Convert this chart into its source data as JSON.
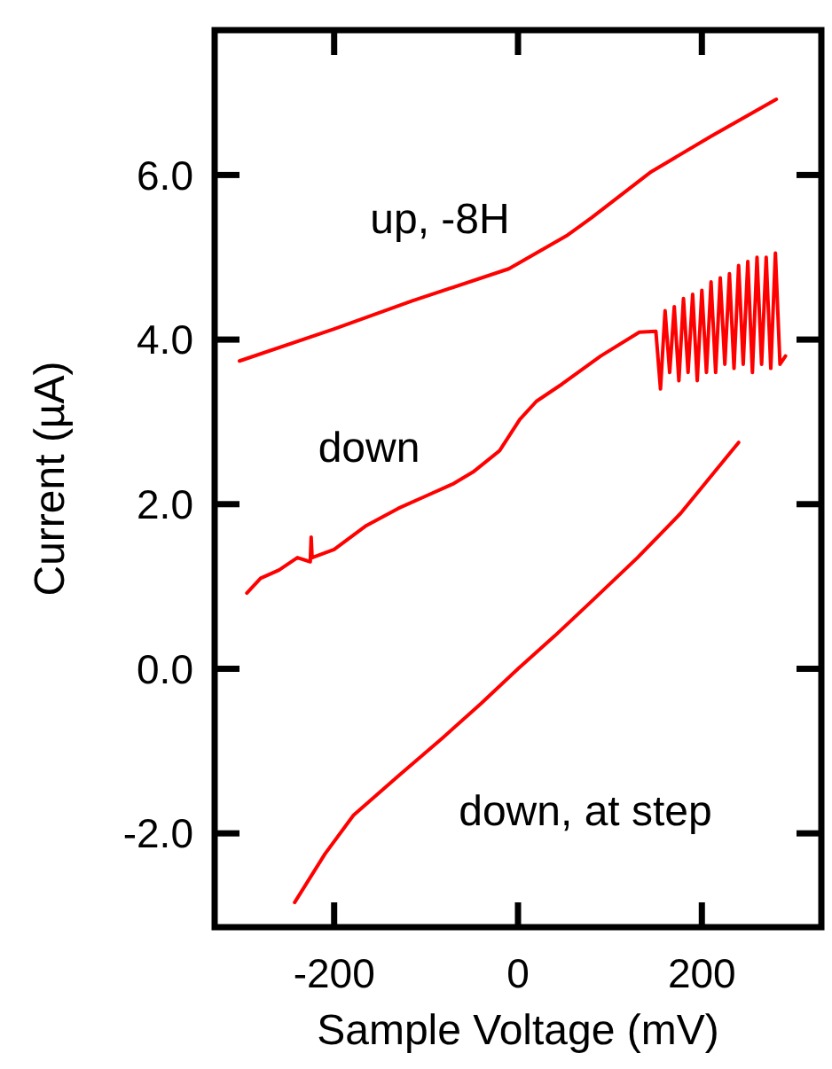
{
  "chart_data": {
    "type": "line",
    "xlabel": "Sample Voltage (mV)",
    "ylabel": "Current (µA)",
    "xlim": [
      -330,
      330
    ],
    "ylim": [
      -3.14,
      7.76
    ],
    "xticks": [
      -200,
      0,
      200
    ],
    "yticks": [
      {
        "value": -2,
        "label": "-2.0"
      },
      {
        "value": 0,
        "label": "0.0"
      },
      {
        "value": 2,
        "label": "2.0"
      },
      {
        "value": 4,
        "label": "4.0"
      },
      {
        "value": 6,
        "label": "6.0"
      }
    ],
    "grid": false,
    "marker": "none",
    "line_style": "solid",
    "tick_labels": "xy",
    "series": [
      {
        "name": "up, -8H",
        "color": "#ff0000",
        "x": [
          -303,
          -200,
          -115,
          -10,
          54,
          80,
          145,
          210,
          281
        ],
        "values": [
          3.74,
          4.13,
          4.47,
          4.86,
          5.27,
          5.48,
          6.04,
          6.47,
          6.92
        ]
      },
      {
        "name": "down",
        "color": "#ff0000",
        "x": [
          -295,
          -280,
          -260,
          -240,
          -226,
          -225,
          -224,
          -200,
          -165,
          -130,
          -100,
          -70,
          -49,
          -20,
          2,
          20,
          48,
          90,
          132,
          150,
          155,
          160,
          165,
          170,
          175,
          180,
          185,
          190,
          195,
          200,
          205,
          210,
          215,
          220,
          225,
          230,
          235,
          240,
          245,
          250,
          255,
          260,
          265,
          270,
          275,
          280,
          285,
          291
        ],
        "values": [
          0.92,
          1.1,
          1.2,
          1.35,
          1.3,
          1.6,
          1.35,
          1.45,
          1.74,
          1.95,
          2.1,
          2.25,
          2.39,
          2.65,
          3.03,
          3.25,
          3.46,
          3.8,
          4.09,
          4.1,
          3.4,
          4.35,
          3.6,
          4.4,
          3.5,
          4.5,
          3.6,
          4.55,
          3.5,
          4.6,
          3.6,
          4.7,
          3.6,
          4.75,
          3.7,
          4.8,
          3.65,
          4.9,
          3.7,
          4.95,
          3.6,
          5.0,
          3.7,
          5.0,
          3.65,
          5.05,
          3.7,
          3.8
        ]
      },
      {
        "name": "down, at step",
        "color": "#ff0000",
        "x": [
          -243,
          -210,
          -179,
          -130,
          -82,
          -40,
          0,
          40,
          80,
          130,
          177,
          240
        ],
        "values": [
          -2.84,
          -2.25,
          -1.78,
          -1.3,
          -0.84,
          -0.42,
          0,
          0.4,
          0.82,
          1.35,
          1.89,
          2.75
        ]
      }
    ]
  }
}
